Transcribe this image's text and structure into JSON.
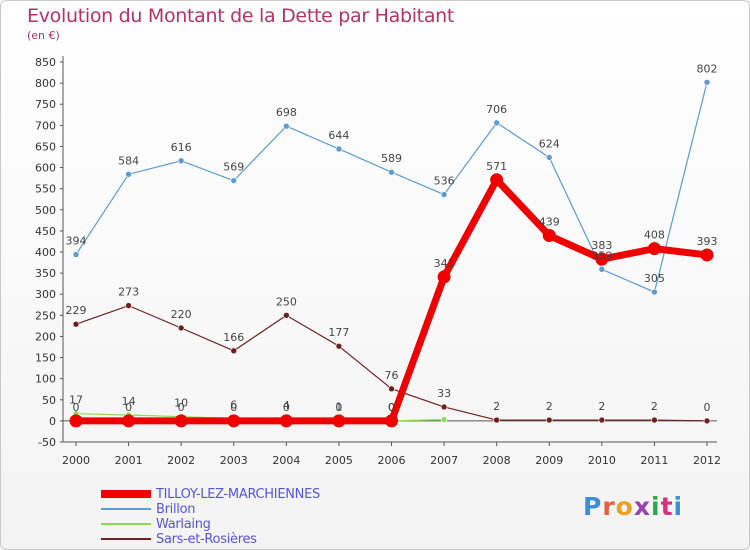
{
  "header": {
    "title": "Evolution du Montant de la Dette par Habitant",
    "subtitle": "(en €)"
  },
  "logo": {
    "text": "Proxiti"
  },
  "chart_data": {
    "type": "line",
    "title": "Evolution du Montant de la Dette par Habitant",
    "subtitle": "(en €)",
    "x": [
      2000,
      2001,
      2002,
      2003,
      2004,
      2005,
      2006,
      2007,
      2008,
      2009,
      2010,
      2011,
      2012
    ],
    "ylim": [
      -50,
      850
    ],
    "ytick_step": 50,
    "grid": false,
    "legend_position": "bottom-left",
    "series": [
      {
        "name": "TILLOY-LEZ-MARCHIENNES",
        "color": "#ee0000",
        "values": [
          0,
          0,
          0,
          0,
          0,
          0,
          0,
          341,
          571,
          439,
          383,
          408,
          393
        ],
        "labels": [
          "0",
          "0",
          "0",
          "0",
          "0",
          "0",
          "0",
          "341",
          "571",
          "439",
          "383",
          "408",
          "393"
        ]
      },
      {
        "name": "Brillon",
        "color": "#5b9bd0",
        "values": [
          394,
          584,
          616,
          569,
          698,
          644,
          589,
          536,
          706,
          624,
          359,
          305,
          802
        ],
        "labels": [
          "394",
          "584",
          "616",
          "569",
          "698",
          "644",
          "589",
          "536",
          "706",
          "624",
          "359",
          "305",
          "802"
        ]
      },
      {
        "name": "Warlaing",
        "color": "#88dd55",
        "values": [
          17,
          14,
          10,
          6,
          4,
          1,
          0,
          3,
          null,
          null,
          null,
          null,
          null
        ],
        "labels": [
          "17",
          "14",
          "10",
          "6",
          "4",
          "1",
          "0",
          "",
          "",
          "",
          "",
          "",
          ""
        ]
      },
      {
        "name": "Sars-et-Rosières",
        "color": "#6e1f1f",
        "values": [
          229,
          273,
          220,
          166,
          250,
          177,
          76,
          33,
          2,
          2,
          2,
          2,
          0
        ],
        "labels": [
          "229",
          "273",
          "220",
          "166",
          "250",
          "177",
          "76",
          "33",
          "2",
          "2",
          "2",
          "2",
          "0"
        ]
      }
    ]
  }
}
